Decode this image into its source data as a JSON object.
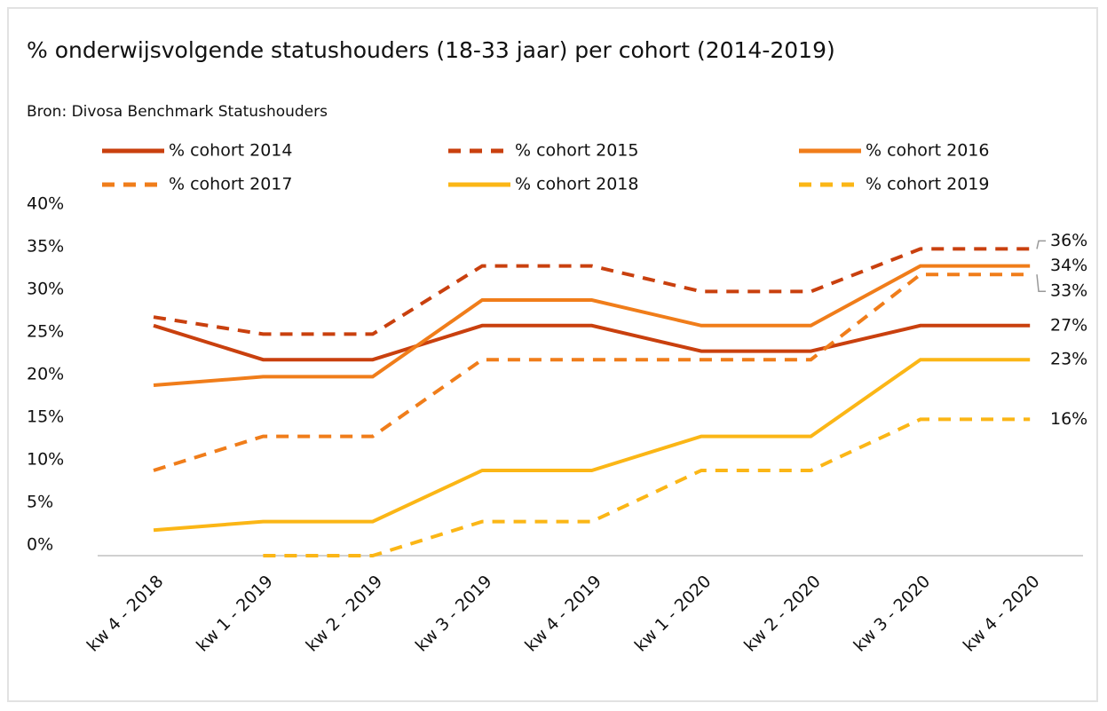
{
  "chart_data": {
    "type": "line",
    "title": "% onderwijsvolgende statushouders (18-33 jaar) per cohort (2014-2019)",
    "subtitle": "Bron: Divosa Benchmark Statushouders",
    "categories": [
      "kw 4 - 2018",
      "kw 1 - 2019",
      "kw 2 - 2019",
      "kw 3 - 2019",
      "kw 4 - 2019",
      "kw 1 - 2020",
      "kw 2 - 2020",
      "kw 3 - 2020",
      "kw 4 - 2020"
    ],
    "ylim": [
      0,
      40
    ],
    "yticks": [
      {
        "value": 0,
        "label": "0%"
      },
      {
        "value": 5,
        "label": "5%"
      },
      {
        "value": 10,
        "label": "10%"
      },
      {
        "value": 15,
        "label": "15%"
      },
      {
        "value": 20,
        "label": "20%"
      },
      {
        "value": 25,
        "label": "25%"
      },
      {
        "value": 30,
        "label": "30%"
      },
      {
        "value": 35,
        "label": "35%"
      },
      {
        "value": 40,
        "label": "40%"
      }
    ],
    "grid": false,
    "series": [
      {
        "name": "% cohort 2014",
        "color": "#c9400e",
        "dashed": false,
        "values": [
          27,
          23,
          23,
          27,
          27,
          24,
          24,
          27,
          27
        ],
        "value_labels": [
          null,
          null,
          null,
          null,
          null,
          null,
          null,
          null,
          "27%"
        ]
      },
      {
        "name": "% cohort 2015",
        "color": "#c9400e",
        "dashed": true,
        "values": [
          28,
          26,
          26,
          34,
          34,
          31,
          31,
          36,
          36
        ],
        "value_labels": [
          null,
          null,
          null,
          null,
          null,
          null,
          null,
          null,
          "36%"
        ]
      },
      {
        "name": "% cohort 2016",
        "color": "#f07d1a",
        "dashed": false,
        "values": [
          20,
          21,
          21,
          30,
          30,
          27,
          27,
          34,
          34
        ],
        "value_labels": [
          null,
          null,
          null,
          null,
          null,
          null,
          null,
          null,
          "34%"
        ]
      },
      {
        "name": "% cohort 2017",
        "color": "#f07d1a",
        "dashed": true,
        "values": [
          10,
          14,
          14,
          23,
          23,
          23,
          23,
          33,
          33
        ],
        "value_labels": [
          null,
          null,
          null,
          null,
          null,
          null,
          null,
          null,
          "33%"
        ]
      },
      {
        "name": "% cohort 2018",
        "color": "#fbb616",
        "dashed": false,
        "values": [
          3,
          4,
          4,
          10,
          10,
          14,
          14,
          23,
          23
        ],
        "value_labels": [
          null,
          null,
          null,
          null,
          null,
          null,
          null,
          null,
          "23%"
        ]
      },
      {
        "name": "% cohort 2019",
        "color": "#fbb616",
        "dashed": true,
        "values": [
          null,
          0,
          0,
          4,
          4,
          10,
          10,
          16,
          16
        ],
        "value_labels": [
          null,
          null,
          null,
          null,
          null,
          null,
          null,
          null,
          "16%"
        ]
      }
    ]
  }
}
